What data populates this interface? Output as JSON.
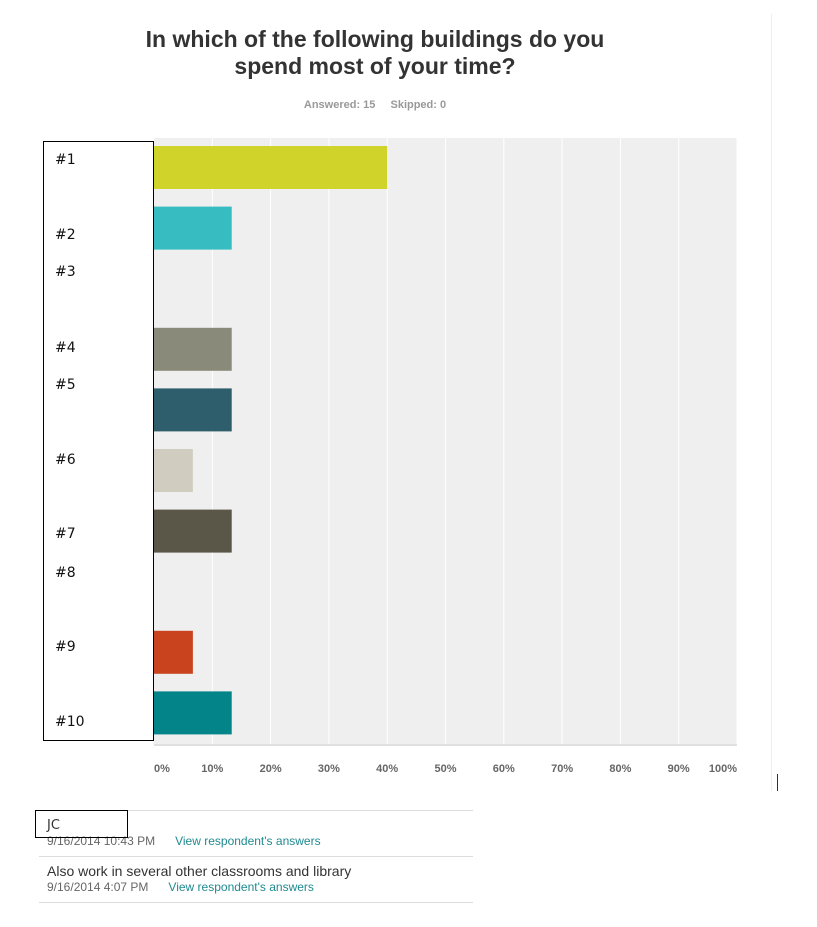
{
  "title_line1": "In which of the following buildings do you",
  "title_line2": "spend most of your time?",
  "answered": "Answered: 15",
  "skipped": "Skipped: 0",
  "chart_data": {
    "type": "bar",
    "orientation": "horizontal",
    "categories": [
      "#1",
      "#2",
      "#3",
      "#4",
      "#5",
      "#6",
      "#7",
      "#8",
      "#9",
      "#10"
    ],
    "values": [
      40,
      13.33,
      0,
      13.33,
      13.33,
      6.67,
      13.33,
      0,
      6.67,
      13.33
    ],
    "colors": [
      "#d0d42a",
      "#36bcc1",
      "#cccccc",
      "#8a8a7a",
      "#2e5e6b",
      "#d0cdc0",
      "#5a5748",
      "#cccccc",
      "#c9441e",
      "#028489"
    ],
    "xlim": [
      0,
      100
    ],
    "xticks": [
      "0%",
      "10%",
      "20%",
      "30%",
      "40%",
      "50%",
      "60%",
      "70%",
      "80%",
      "90%",
      "100%"
    ],
    "grid": true
  },
  "responses": [
    {
      "text": "JC",
      "date": "9/16/2014 10:43 PM",
      "link": "View respondent's answers"
    },
    {
      "text": "Also work in several other classrooms and library",
      "date": "9/16/2014 4:07 PM",
      "link": "View respondent's answers"
    }
  ]
}
